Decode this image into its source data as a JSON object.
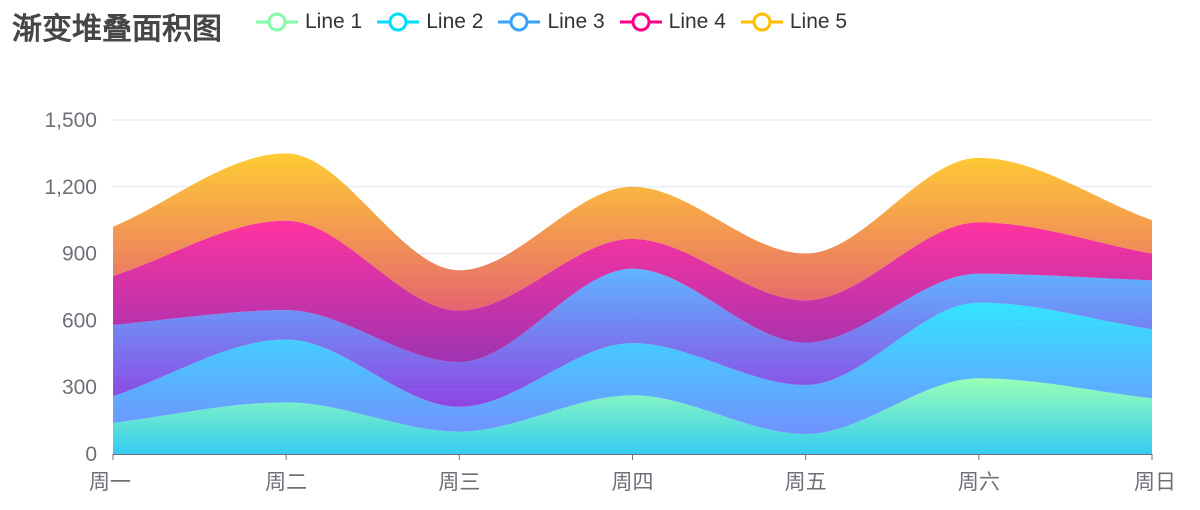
{
  "title": "渐变堆叠面积图",
  "legend": [
    {
      "name": "Line 1",
      "color": "#80FFA5"
    },
    {
      "name": "Line 2",
      "color": "#00DDFF"
    },
    {
      "name": "Line 3",
      "color": "#37A2FF"
    },
    {
      "name": "Line 4",
      "color": "#FF0087"
    },
    {
      "name": "Line 5",
      "color": "#FFBF00"
    }
  ],
  "chart_data": {
    "type": "area",
    "stacked": true,
    "smooth": true,
    "title": "渐变堆叠面积图",
    "categories": [
      "周一",
      "周二",
      "周三",
      "周四",
      "周五",
      "周六",
      "周日"
    ],
    "ylim": [
      0,
      1500
    ],
    "yticks": [
      0,
      300,
      600,
      900,
      1200,
      1500
    ],
    "ytick_labels": [
      "0",
      "300",
      "600",
      "900",
      "1,200",
      "1,500"
    ],
    "grid": true,
    "legend_position": "top",
    "series": [
      {
        "name": "Line 1",
        "values": [
          140,
          232,
          101,
          264,
          90,
          340,
          250
        ],
        "color_top": "#80FFA5",
        "color_bottom": "#01BFEC"
      },
      {
        "name": "Line 2",
        "values": [
          120,
          282,
          111,
          234,
          220,
          340,
          310
        ],
        "color_top": "#00DDFF",
        "color_bottom": "#4D77FF"
      },
      {
        "name": "Line 3",
        "values": [
          320,
          132,
          201,
          334,
          190,
          130,
          220
        ],
        "color_top": "#37A2FF",
        "color_bottom": "#7415DB"
      },
      {
        "name": "Line 4",
        "values": [
          220,
          402,
          231,
          134,
          190,
          230,
          120
        ],
        "color_top": "#FF0087",
        "color_bottom": "#87009D"
      },
      {
        "name": "Line 5",
        "values": [
          220,
          302,
          181,
          234,
          210,
          290,
          150
        ],
        "color_top": "#FFBF00",
        "color_bottom": "#E03E4C"
      }
    ]
  }
}
